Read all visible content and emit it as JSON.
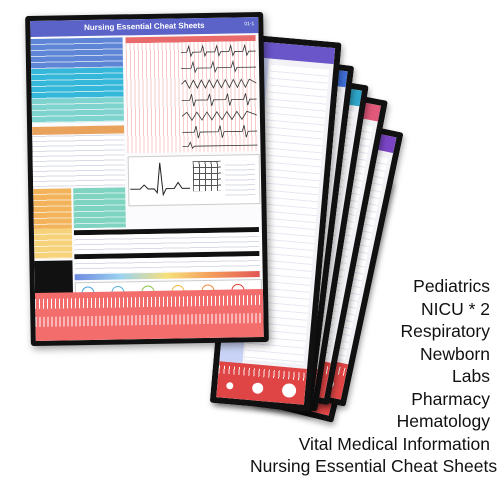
{
  "main_sheet": {
    "title": "Nursing Essential Cheat Sheets",
    "code": "01-1"
  },
  "products": [
    "Pediatrics",
    "NICU * 2",
    "Respiratory",
    "Newborn",
    "Labs",
    "Pharmacy",
    "Hematology",
    "Vital Medical Information",
    "Nursing Essential Cheat Sheets"
  ],
  "colors": {
    "header_blue": "#5b63c8",
    "ruler_red": "#f36d6d",
    "frame_black": "#111111",
    "card_purple": "#6a55c9",
    "card_blue": "#3f6fd8",
    "card_teal": "#2fa6c9",
    "card_pink": "#e0587a",
    "card_violet": "#7a45c4"
  }
}
